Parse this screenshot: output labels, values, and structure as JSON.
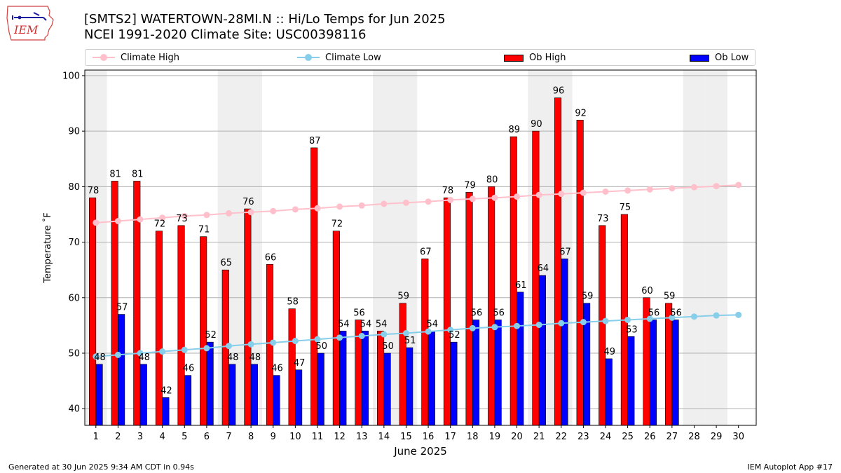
{
  "logo": {
    "text": "IEM"
  },
  "title_line1": "[SMTS2] WATERTOWN-28MI.N :: Hi/Lo Temps for Jun 2025",
  "title_line2": "NCEI 1991-2020 Climate Site: USC00398116",
  "footer_left": "Generated at 30 Jun 2025 9:34 AM CDT in 0.94s",
  "footer_right": "IEM Autoplot App #17",
  "colors": {
    "ob_high": "#ff0000",
    "ob_low": "#0000ff",
    "climate_high": "#ffc0cb",
    "climate_low": "#87ceeb",
    "weekend_band": "#efefef",
    "grid": "#b0b0b0"
  },
  "chart_data": {
    "type": "bar",
    "title": "[SMTS2] WATERTOWN-28MI.N :: Hi/Lo Temps for Jun 2025",
    "subtitle": "NCEI 1991-2020 Climate Site: USC00398116",
    "xlabel": "June 2025",
    "ylabel": "Temperature ˚F",
    "ylim": [
      37,
      101
    ],
    "yticks": [
      40,
      50,
      60,
      70,
      80,
      90,
      100
    ],
    "grid": true,
    "legend_position": "top",
    "categories": [
      1,
      2,
      3,
      4,
      5,
      6,
      7,
      8,
      9,
      10,
      11,
      12,
      13,
      14,
      15,
      16,
      17,
      18,
      19,
      20,
      21,
      22,
      23,
      24,
      25,
      26,
      27,
      28,
      29,
      30
    ],
    "weekend_days": [
      1,
      7,
      8,
      14,
      15,
      21,
      22,
      28,
      29
    ],
    "series": [
      {
        "name": "Ob High",
        "kind": "bar",
        "values": [
          78,
          81,
          81,
          72,
          73,
          71,
          65,
          76,
          66,
          58,
          87,
          72,
          56,
          54,
          59,
          67,
          78,
          79,
          80,
          89,
          90,
          96,
          92,
          73,
          75,
          60,
          59,
          null,
          null,
          null
        ]
      },
      {
        "name": "Ob Low",
        "kind": "bar",
        "values": [
          48,
          57,
          48,
          42,
          46,
          52,
          48,
          48,
          46,
          47,
          50,
          54,
          54,
          50,
          51,
          54,
          52,
          56,
          56,
          61,
          64,
          67,
          59,
          49,
          53,
          56,
          56,
          null,
          null,
          null
        ]
      },
      {
        "name": "Climate High",
        "kind": "line",
        "values": [
          73.5,
          73.8,
          74.1,
          74.4,
          74.7,
          74.9,
          75.2,
          75.4,
          75.6,
          75.9,
          76.1,
          76.4,
          76.6,
          76.9,
          77.1,
          77.3,
          77.6,
          77.8,
          78.0,
          78.2,
          78.5,
          78.7,
          78.9,
          79.1,
          79.3,
          79.5,
          79.7,
          79.9,
          80.1,
          80.3
        ]
      },
      {
        "name": "Climate Low",
        "kind": "line",
        "values": [
          49.4,
          49.7,
          50.0,
          50.3,
          50.6,
          50.9,
          51.3,
          51.6,
          51.9,
          52.2,
          52.5,
          52.8,
          53.1,
          53.4,
          53.6,
          53.9,
          54.2,
          54.5,
          54.7,
          54.9,
          55.1,
          55.4,
          55.6,
          55.8,
          56.0,
          56.2,
          56.4,
          56.6,
          56.8,
          56.9
        ]
      }
    ]
  }
}
